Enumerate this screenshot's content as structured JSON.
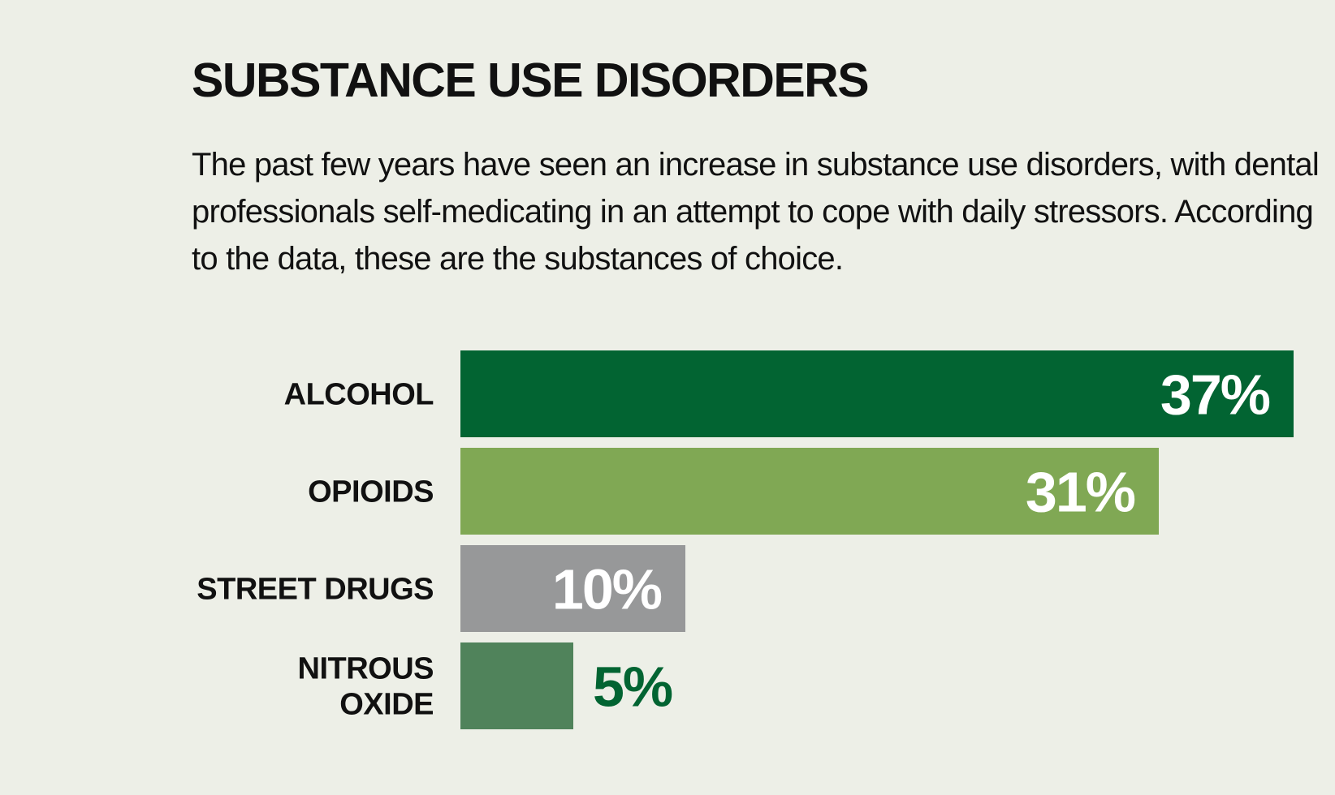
{
  "header": {
    "title": "SUBSTANCE USE DISORDERS",
    "subtitle": "The past few years have seen an increase in substance use disorders, with dental professionals self-medicating in an attempt to cope with daily stressors. According to the data, these are the substances of choice."
  },
  "colors": {
    "background": "#edefe7",
    "text": "#111111",
    "value_light": "#ffffff"
  },
  "chart_data": {
    "type": "bar",
    "orientation": "horizontal",
    "title": "SUBSTANCE USE DISORDERS",
    "xlabel": "",
    "ylabel": "",
    "grid": false,
    "legend": "none",
    "xlim": [
      0,
      37
    ],
    "value_suffix": "%",
    "categories": [
      [
        "ALCOHOL"
      ],
      [
        "OPIOIDS"
      ],
      [
        "STREET DRUGS"
      ],
      [
        "NITROUS",
        "OXIDE"
      ]
    ],
    "values": [
      37,
      31,
      10,
      5
    ],
    "bar_colors": [
      "#026432",
      "#80a854",
      "#979899",
      "#50835b"
    ],
    "value_label_colors": [
      "#ffffff",
      "#ffffff",
      "#ffffff",
      "#026432"
    ],
    "value_label_inside": [
      true,
      true,
      true,
      false
    ]
  }
}
